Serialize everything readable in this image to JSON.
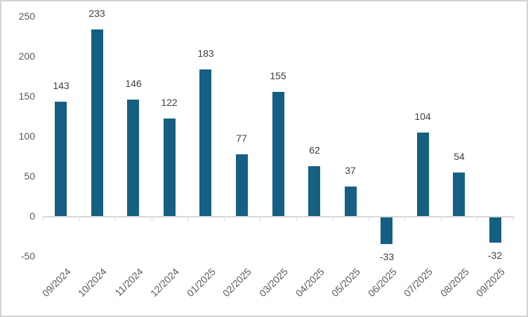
{
  "chart_data": {
    "type": "bar",
    "title": "",
    "xlabel": "",
    "ylabel": "",
    "categories": [
      "09/2024",
      "10/2024",
      "11/2024",
      "12/2024",
      "01/2025",
      "02/2025",
      "03/2025",
      "04/2025",
      "05/2025",
      "06/2025",
      "07/2025",
      "08/2025",
      "09/2025"
    ],
    "values": [
      143,
      233,
      146,
      122,
      183,
      77,
      155,
      62,
      37,
      -33,
      104,
      54,
      -32
    ],
    "data_labels": [
      "143",
      "233",
      "146",
      "122",
      "183",
      "77",
      "155",
      "62",
      "37",
      "-33",
      "104",
      "54",
      "-32"
    ],
    "y_ticks": [
      250,
      200,
      150,
      100,
      50,
      0,
      -50
    ],
    "y_tick_labels": [
      "250",
      "200",
      "150",
      "100",
      "50",
      "0",
      "-50"
    ],
    "ylim": [
      -50,
      250
    ],
    "grid": false,
    "legend": "none",
    "bar_color": "#156082",
    "axis_line_color": "#d9d9d9",
    "data_label_color": "#404040",
    "axis_text_color": "#595959",
    "background_color": "#ffffff",
    "border_color": "#d2d2d2"
  }
}
